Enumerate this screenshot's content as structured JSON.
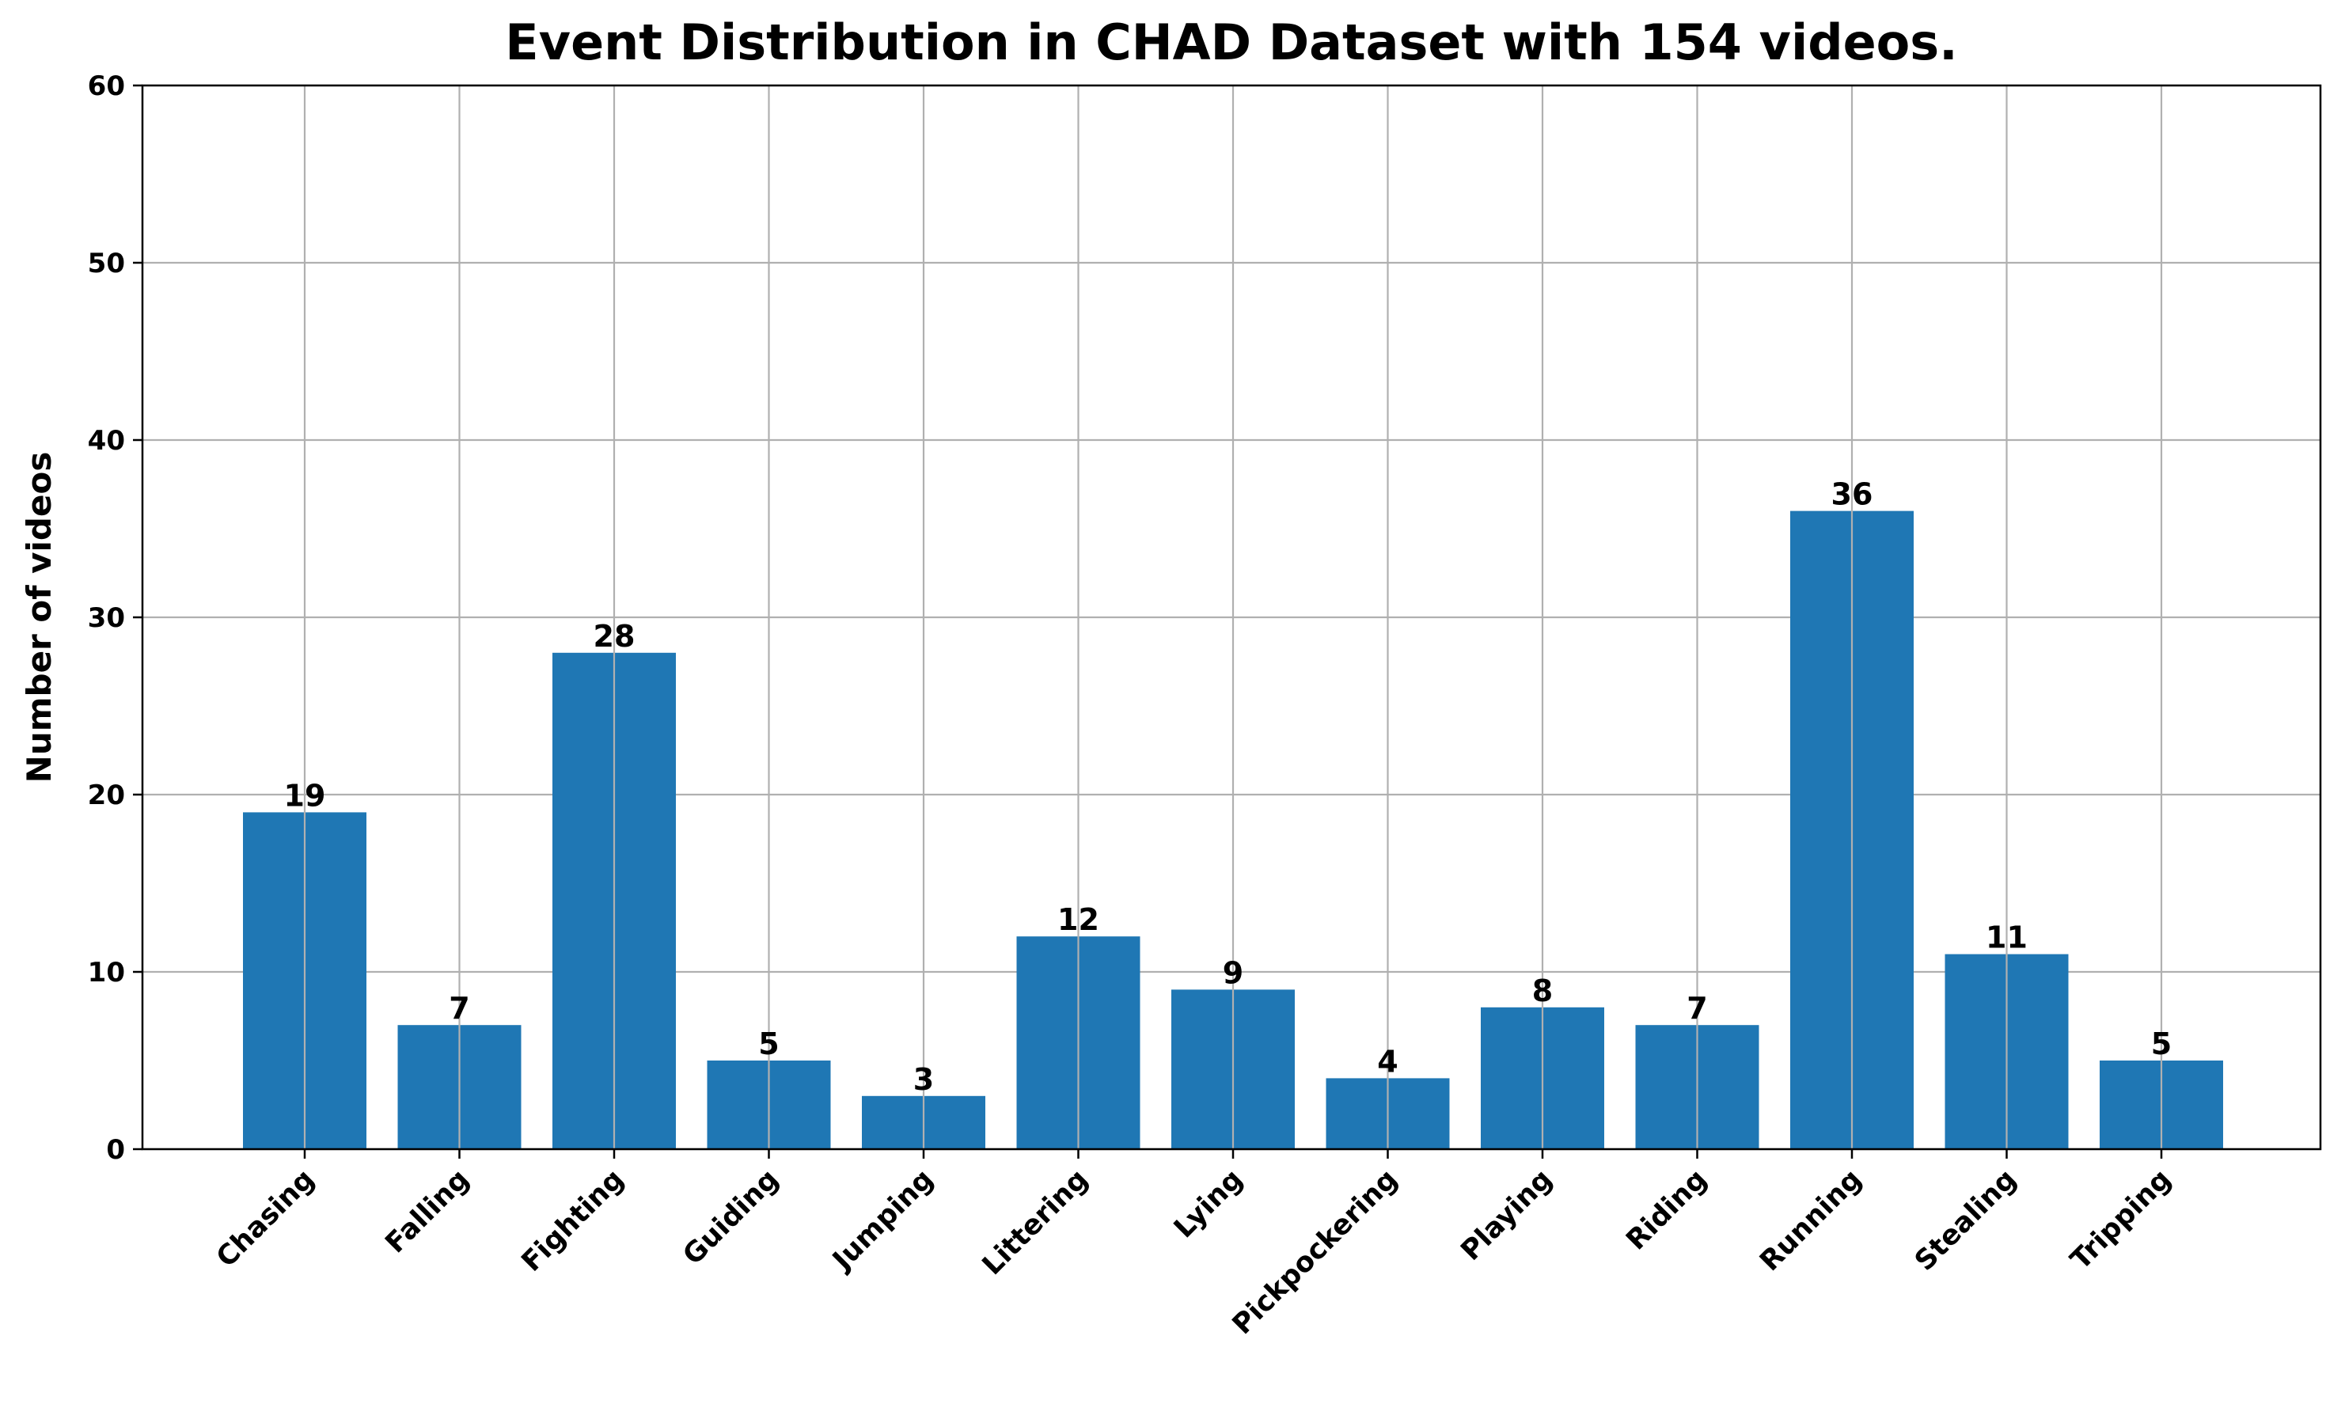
{
  "chart_data": {
    "type": "bar",
    "title": "Event Distribution in CHAD Dataset with 154 videos.",
    "xlabel": "",
    "ylabel": "Number of videos",
    "categories": [
      "Chasing",
      "Falling",
      "Fighting",
      "Guiding",
      "Jumping",
      "Littering",
      "Lying",
      "Pickpockering",
      "Playing",
      "Riding",
      "Running",
      "Stealing",
      "Tripping"
    ],
    "values": [
      19,
      7,
      28,
      5,
      3,
      12,
      9,
      4,
      8,
      7,
      36,
      11,
      5
    ],
    "value_labels": [
      "19",
      "7",
      "28",
      "5",
      "3",
      "12",
      "9",
      "4",
      "8",
      "7",
      "36",
      "11",
      "5"
    ],
    "ylim": [
      0,
      60
    ],
    "yticks": [
      0,
      10,
      20,
      30,
      40,
      50,
      60
    ],
    "ytick_labels": [
      "0",
      "10",
      "20",
      "30",
      "40",
      "50",
      "60"
    ],
    "grid": true,
    "bar_color": "#1f77b4",
    "grid_color": "#b0b0b0"
  }
}
